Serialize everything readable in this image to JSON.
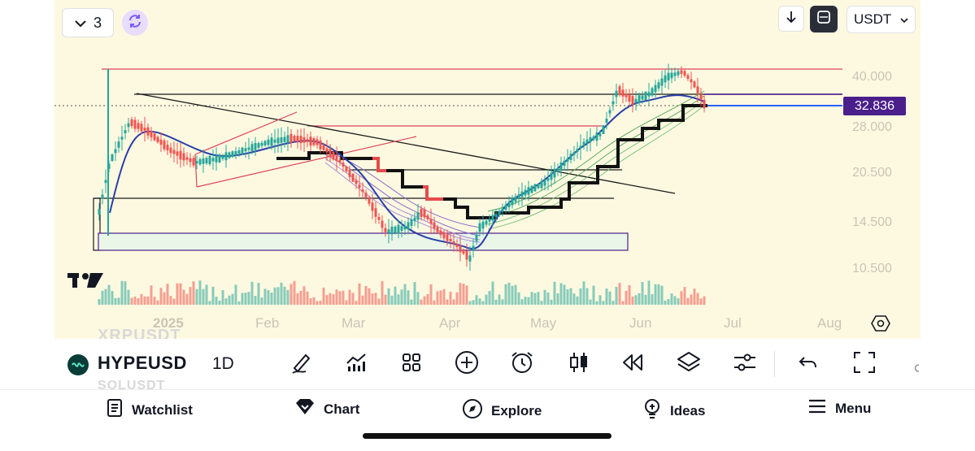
{
  "top_controls": {
    "layout_count": "3",
    "currency": "USDT"
  },
  "price_axis": {
    "labels": [
      "40.000",
      "28.000",
      "20.500",
      "14.500",
      "10.500"
    ],
    "current_price": "32.836",
    "current_price_color": "#4a1f8c"
  },
  "time_axis": {
    "labels": [
      "2025",
      "Feb",
      "Mar",
      "Apr",
      "May",
      "Jun",
      "Jul",
      "Aug"
    ]
  },
  "ghost_text": {
    "above": "XRPUSDT",
    "below": "SOLUSDT"
  },
  "toolbar": {
    "symbol": "HYPEUSD",
    "interval": "1D"
  },
  "bottom_nav": {
    "items": [
      {
        "label": "Watchlist",
        "icon": "watchlist-icon"
      },
      {
        "label": "Chart",
        "icon": "chart-icon"
      },
      {
        "label": "Explore",
        "icon": "compass-icon"
      },
      {
        "label": "Ideas",
        "icon": "lightbulb-icon"
      },
      {
        "label": "Menu",
        "icon": "menu-icon"
      }
    ]
  },
  "colors": {
    "up": "#26a69a",
    "down": "#ef5350",
    "accent": "#7a5cf0",
    "background": "#fdf9e1"
  }
}
